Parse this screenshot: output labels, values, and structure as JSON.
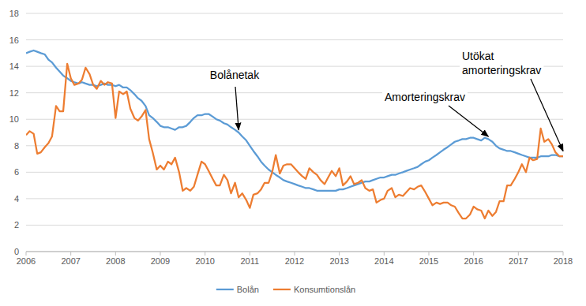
{
  "chart_data": {
    "type": "line",
    "x": [
      2006,
      2006.08,
      2006.17,
      2006.25,
      2006.33,
      2006.42,
      2006.5,
      2006.58,
      2006.67,
      2006.75,
      2006.83,
      2006.92,
      2007,
      2007.08,
      2007.17,
      2007.25,
      2007.33,
      2007.42,
      2007.5,
      2007.58,
      2007.67,
      2007.75,
      2007.83,
      2007.92,
      2008,
      2008.08,
      2008.17,
      2008.25,
      2008.33,
      2008.42,
      2008.5,
      2008.58,
      2008.67,
      2008.75,
      2008.83,
      2008.92,
      2009,
      2009.08,
      2009.17,
      2009.25,
      2009.33,
      2009.42,
      2009.5,
      2009.58,
      2009.67,
      2009.75,
      2009.83,
      2009.92,
      2010,
      2010.08,
      2010.17,
      2010.25,
      2010.33,
      2010.42,
      2010.5,
      2010.58,
      2010.67,
      2010.75,
      2010.83,
      2010.92,
      2011,
      2011.08,
      2011.17,
      2011.25,
      2011.33,
      2011.42,
      2011.5,
      2011.58,
      2011.67,
      2011.75,
      2011.83,
      2011.92,
      2012,
      2012.08,
      2012.17,
      2012.25,
      2012.33,
      2012.42,
      2012.5,
      2012.58,
      2012.67,
      2012.75,
      2012.83,
      2012.92,
      2013,
      2013.08,
      2013.17,
      2013.25,
      2013.33,
      2013.42,
      2013.5,
      2013.58,
      2013.67,
      2013.75,
      2013.83,
      2013.92,
      2014,
      2014.08,
      2014.17,
      2014.25,
      2014.33,
      2014.42,
      2014.5,
      2014.58,
      2014.67,
      2014.75,
      2014.83,
      2014.92,
      2015,
      2015.08,
      2015.17,
      2015.25,
      2015.33,
      2015.42,
      2015.5,
      2015.58,
      2015.67,
      2015.75,
      2015.83,
      2015.92,
      2016,
      2016.08,
      2016.17,
      2016.25,
      2016.33,
      2016.42,
      2016.5,
      2016.58,
      2016.67,
      2016.75,
      2016.83,
      2016.92,
      2017,
      2017.08,
      2017.17,
      2017.25,
      2017.33,
      2017.42,
      2017.5,
      2017.58,
      2017.67,
      2017.75,
      2017.83,
      2017.92,
      2018
    ],
    "series": [
      {
        "name": "Bolån",
        "color": "#5b9bd5",
        "values": [
          15.0,
          15.1,
          15.2,
          15.1,
          15.0,
          14.9,
          14.5,
          14.3,
          13.9,
          13.6,
          13.3,
          13.1,
          12.9,
          12.8,
          12.7,
          12.8,
          12.7,
          12.6,
          12.6,
          12.5,
          12.6,
          12.7,
          12.6,
          12.6,
          12.5,
          12.6,
          12.4,
          12.4,
          12.2,
          11.9,
          11.6,
          11.4,
          11.0,
          10.3,
          10.1,
          9.8,
          9.5,
          9.4,
          9.4,
          9.3,
          9.2,
          9.4,
          9.4,
          9.5,
          9.8,
          10.1,
          10.3,
          10.3,
          10.4,
          10.4,
          10.2,
          10.0,
          9.9,
          9.7,
          9.6,
          9.4,
          9.2,
          9.0,
          8.7,
          8.4,
          8.0,
          7.6,
          7.2,
          6.8,
          6.5,
          6.2,
          6.0,
          5.8,
          5.6,
          5.4,
          5.3,
          5.2,
          5.1,
          5.0,
          4.9,
          4.8,
          4.8,
          4.7,
          4.6,
          4.6,
          4.6,
          4.6,
          4.6,
          4.6,
          4.7,
          4.7,
          4.8,
          4.9,
          5.0,
          5.1,
          5.2,
          5.3,
          5.3,
          5.4,
          5.5,
          5.6,
          5.6,
          5.7,
          5.8,
          5.8,
          5.9,
          6.0,
          6.1,
          6.2,
          6.3,
          6.4,
          6.6,
          6.8,
          6.9,
          7.1,
          7.3,
          7.5,
          7.7,
          7.9,
          8.1,
          8.3,
          8.4,
          8.5,
          8.5,
          8.6,
          8.6,
          8.5,
          8.4,
          8.6,
          8.5,
          8.3,
          8.0,
          7.8,
          7.7,
          7.6,
          7.6,
          7.5,
          7.4,
          7.3,
          7.2,
          7.1,
          7.1,
          7.1,
          7.2,
          7.2,
          7.2,
          7.3,
          7.3,
          7.2,
          7.2
        ]
      },
      {
        "name": "Konsumtionslån",
        "color": "#ed7d31",
        "values": [
          8.8,
          9.1,
          8.9,
          7.4,
          7.5,
          7.9,
          8.2,
          8.7,
          11.0,
          10.6,
          10.6,
          14.2,
          13.1,
          12.6,
          12.7,
          13.0,
          13.9,
          13.4,
          12.6,
          12.3,
          12.9,
          12.6,
          12.8,
          12.7,
          10.1,
          12.1,
          11.9,
          12.1,
          10.8,
          10.1,
          9.9,
          10.2,
          10.7,
          8.5,
          7.5,
          6.2,
          6.5,
          6.2,
          6.8,
          6.6,
          7.1,
          6.0,
          4.6,
          4.8,
          4.6,
          4.9,
          5.8,
          6.8,
          6.6,
          6.1,
          5.5,
          5.0,
          5.0,
          5.8,
          5.4,
          4.4,
          5.2,
          4.1,
          4.4,
          3.9,
          3.3,
          4.3,
          4.4,
          4.7,
          5.2,
          5.2,
          6.0,
          7.3,
          5.9,
          6.5,
          6.6,
          6.6,
          6.3,
          6.0,
          5.7,
          5.5,
          6.3,
          6.0,
          5.8,
          5.4,
          5.1,
          5.6,
          6.1,
          5.7,
          6.3,
          5.0,
          5.3,
          5.7,
          5.1,
          5.2,
          5.4,
          4.8,
          4.6,
          4.7,
          3.7,
          3.9,
          4.0,
          4.6,
          4.8,
          4.1,
          4.3,
          4.2,
          4.5,
          4.8,
          4.7,
          4.9,
          5.0,
          4.5,
          4.0,
          3.5,
          3.7,
          3.6,
          3.7,
          3.7,
          3.5,
          3.4,
          2.9,
          2.5,
          2.5,
          2.8,
          3.4,
          3.2,
          3.1,
          2.5,
          3.1,
          2.7,
          3.0,
          3.8,
          3.8,
          5.0,
          5.0,
          5.5,
          6.0,
          6.6,
          6.0,
          7.1,
          6.9,
          7.0,
          9.3,
          8.3,
          8.5,
          8.1,
          7.5,
          7.2,
          7.2
        ]
      }
    ],
    "xlim": [
      2006,
      2018
    ],
    "xticks": [
      2006,
      2007,
      2008,
      2009,
      2010,
      2011,
      2012,
      2013,
      2014,
      2015,
      2016,
      2017,
      2018
    ],
    "ylim": [
      0,
      18
    ],
    "yticks": [
      0,
      2,
      4,
      6,
      8,
      10,
      12,
      14,
      16,
      18
    ],
    "grid": true,
    "legend": "bottom",
    "annotations": [
      {
        "text": [
          "Bolånetak"
        ],
        "x": 2010.75,
        "y": 9.2
      },
      {
        "text": [
          "Amorteringskrav"
        ],
        "x": 2016.33,
        "y": 8.7
      },
      {
        "text": [
          "Utökat",
          "amorteringskrav"
        ],
        "x": 2018,
        "y": 7.6
      }
    ]
  }
}
